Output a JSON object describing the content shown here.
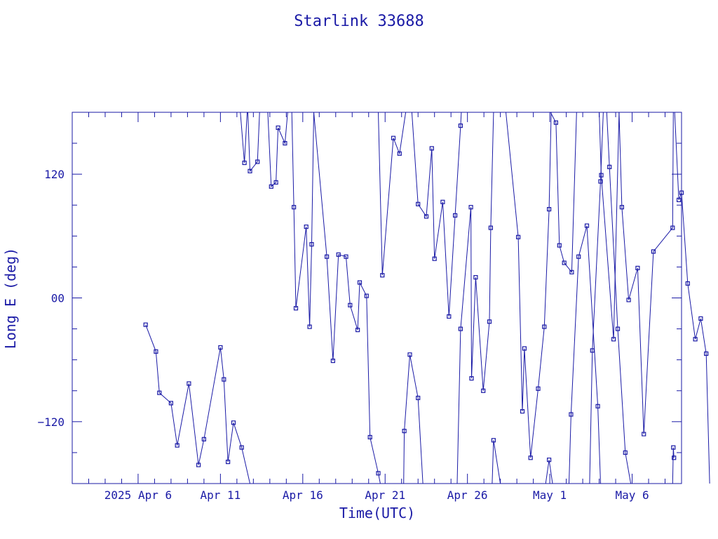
{
  "chart_data": {
    "type": "line",
    "title": "Starlink 33688",
    "xlabel": "Time(UTC)",
    "ylabel": "Long E (deg)",
    "x_is_date": true,
    "xlim": [
      "2025-04-02",
      "2025-05-09"
    ],
    "ylim": [
      -180,
      180
    ],
    "x_tick_labels": [
      "2025 Apr  6",
      "Apr 11",
      "Apr 16",
      "Apr 21",
      "Apr 26",
      "May  1",
      "May  6"
    ],
    "x_tick_dates": [
      "2025-04-06",
      "2025-04-11",
      "2025-04-16",
      "2025-04-21",
      "2025-04-26",
      "2025-05-01",
      "2025-05-06"
    ],
    "y_ticks": [
      -120,
      0,
      120
    ],
    "y_tick_labels": [
      "−120",
      "00",
      "120"
    ],
    "color": "#1a1aa6",
    "marker": "square",
    "series": [
      {
        "points": [
          [
            "2025-04-06 11:00",
            -26
          ],
          [
            "2025-04-07 02:00",
            -52
          ],
          [
            "2025-04-07 07:00",
            -92
          ],
          [
            "2025-04-08 00:00",
            -102
          ],
          [
            "2025-04-08 09:00",
            -143
          ],
          [
            "2025-04-09 02:00",
            -83
          ],
          [
            "2025-04-09 16:00",
            -162
          ],
          [
            "2025-04-10 00:00",
            -137
          ],
          [
            "2025-04-11 00:00",
            -48
          ],
          [
            "2025-04-11 05:00",
            -79
          ],
          [
            "2025-04-11 11:00",
            -159
          ],
          [
            "2025-04-11 19:00",
            -121
          ],
          [
            "2025-04-12 07:00",
            -145
          ],
          [
            "2025-04-12 19:00",
            -180
          ]
        ]
      },
      {
        "points": [
          [
            "2025-04-12 05:00",
            180
          ],
          [
            "2025-04-12 11:00",
            131
          ],
          [
            "2025-04-12 15:00",
            180
          ]
        ]
      },
      {
        "points": [
          [
            "2025-04-12 16:00",
            180
          ],
          [
            "2025-04-12 19:00",
            123
          ],
          [
            "2025-04-13 06:00",
            132
          ],
          [
            "2025-04-13 09:00",
            180
          ]
        ]
      },
      {
        "points": [
          [
            "2025-04-13 21:00",
            180
          ],
          [
            "2025-04-14 02:00",
            108
          ],
          [
            "2025-04-14 09:00",
            112
          ],
          [
            "2025-04-14 12:00",
            165
          ],
          [
            "2025-04-14 22:00",
            150
          ],
          [
            "2025-04-15 02:00",
            180
          ]
        ]
      },
      {
        "points": [
          [
            "2025-04-15 08:00",
            180
          ],
          [
            "2025-04-15 11:00",
            88
          ],
          [
            "2025-04-15 14:00",
            -10
          ],
          [
            "2025-04-16 05:00",
            69
          ],
          [
            "2025-04-16 10:00",
            -28
          ],
          [
            "2025-04-16 13:00",
            52
          ],
          [
            "2025-04-16 16:00",
            180
          ]
        ]
      },
      {
        "points": [
          [
            "2025-04-16 16:00",
            180
          ],
          [
            "2025-04-17 11:00",
            40
          ],
          [
            "2025-04-17 20:00",
            -61
          ],
          [
            "2025-04-18 04:00",
            42
          ],
          [
            "2025-04-18 15:00",
            40
          ],
          [
            "2025-04-18 21:00",
            -7
          ],
          [
            "2025-04-19 08:00",
            -31
          ],
          [
            "2025-04-19 11:00",
            15
          ],
          [
            "2025-04-19 21:00",
            2
          ],
          [
            "2025-04-20 02:00",
            -135
          ],
          [
            "2025-04-20 14:00",
            -170
          ],
          [
            "2025-04-20 17:00",
            -180
          ]
        ]
      },
      {
        "points": [
          [
            "2025-04-20 14:00",
            180
          ],
          [
            "2025-04-20 20:00",
            22
          ],
          [
            "2025-04-21 12:00",
            155
          ],
          [
            "2025-04-21 21:00",
            140
          ],
          [
            "2025-04-22 06:00",
            180
          ]
        ]
      },
      {
        "points": [
          [
            "2025-04-22 03:00",
            -180
          ],
          [
            "2025-04-22 04:00",
            -129
          ],
          [
            "2025-04-22 12:00",
            -55
          ],
          [
            "2025-04-23 00:00",
            -97
          ],
          [
            "2025-04-23 07:00",
            -180
          ]
        ]
      },
      {
        "points": [
          [
            "2025-04-22 15:00",
            180
          ],
          [
            "2025-04-23 00:00",
            91
          ],
          [
            "2025-04-23 12:00",
            79
          ],
          [
            "2025-04-23 20:00",
            145
          ],
          [
            "2025-04-24 00:00",
            38
          ],
          [
            "2025-04-24 12:00",
            93
          ],
          [
            "2025-04-24 21:00",
            -18
          ],
          [
            "2025-04-25 06:00",
            80
          ],
          [
            "2025-04-25 14:00",
            167
          ],
          [
            "2025-04-25 15:00",
            180
          ]
        ]
      },
      {
        "points": [
          [
            "2025-04-25 09:00",
            -180
          ],
          [
            "2025-04-25 14:00",
            -30
          ],
          [
            "2025-04-26 05:00",
            88
          ],
          [
            "2025-04-26 06:00",
            -78
          ],
          [
            "2025-04-26 12:00",
            20
          ],
          [
            "2025-04-26 23:00",
            -90
          ],
          [
            "2025-04-27 08:00",
            -23
          ],
          [
            "2025-04-27 10:00",
            68
          ],
          [
            "2025-04-27 14:00",
            180
          ]
        ]
      },
      {
        "points": [
          [
            "2025-04-27 12:00",
            -180
          ],
          [
            "2025-04-27 14:00",
            -138
          ],
          [
            "2025-04-28 00:00",
            -180
          ]
        ]
      },
      {
        "points": [
          [
            "2025-04-28 08:00",
            180
          ],
          [
            "2025-04-29 02:00",
            59
          ],
          [
            "2025-04-29 08:00",
            -110
          ],
          [
            "2025-04-29 11:00",
            -49
          ],
          [
            "2025-04-29 20:00",
            -155
          ],
          [
            "2025-04-30 07:00",
            -88
          ],
          [
            "2025-04-30 16:00",
            -28
          ],
          [
            "2025-04-30 23:00",
            86
          ],
          [
            "2025-05-01 02:00",
            180
          ]
        ]
      },
      {
        "points": [
          [
            "2025-04-30 18:00",
            -180
          ],
          [
            "2025-04-30 23:00",
            -157
          ],
          [
            "2025-05-01 04:00",
            -180
          ]
        ]
      },
      {
        "points": [
          [
            "2025-05-01 01:00",
            180
          ],
          [
            "2025-05-01 09:00",
            170
          ],
          [
            "2025-05-01 14:00",
            51
          ],
          [
            "2025-05-01 21:00",
            34
          ],
          [
            "2025-05-02 08:00",
            25
          ],
          [
            "2025-05-02 15:00",
            180
          ]
        ]
      },
      {
        "points": [
          [
            "2025-05-02 04:00",
            -180
          ],
          [
            "2025-05-02 07:00",
            -113
          ],
          [
            "2025-05-02 18:00",
            40
          ],
          [
            "2025-05-03 06:00",
            70
          ],
          [
            "2025-05-03 22:00",
            -105
          ],
          [
            "2025-05-04 02:00",
            -180
          ]
        ]
      },
      {
        "points": [
          [
            "2025-05-03 10:00",
            -180
          ],
          [
            "2025-05-03 14:00",
            -51
          ],
          [
            "2025-05-04 02:00",
            113
          ],
          [
            "2025-05-04 06:00",
            180
          ]
        ]
      },
      {
        "points": [
          [
            "2025-05-04 00:00",
            180
          ],
          [
            "2025-05-04 03:00",
            119
          ],
          [
            "2025-05-04 21:00",
            -40
          ],
          [
            "2025-05-05 05:00",
            180
          ]
        ]
      },
      {
        "points": [
          [
            "2025-05-04 11:00",
            180
          ],
          [
            "2025-05-04 15:00",
            127
          ],
          [
            "2025-05-05 03:00",
            -30
          ],
          [
            "2025-05-05 14:00",
            -150
          ],
          [
            "2025-05-05 22:00",
            -180
          ]
        ]
      },
      {
        "points": [
          [
            "2025-05-05 05:00",
            180
          ],
          [
            "2025-05-05 09:00",
            88
          ],
          [
            "2025-05-05 19:00",
            -2
          ],
          [
            "2025-05-06 08:00",
            29
          ],
          [
            "2025-05-06 17:00",
            -132
          ],
          [
            "2025-05-07 07:00",
            45
          ],
          [
            "2025-05-08 11:00",
            68
          ],
          [
            "2025-05-08 12:00",
            180
          ]
        ]
      },
      {
        "points": [
          [
            "2025-05-08 11:00",
            -180
          ],
          [
            "2025-05-08 12:00",
            -145
          ],
          [
            "2025-05-08 13:00",
            -155
          ]
        ]
      },
      {
        "points": [
          [
            "2025-05-08 14:00",
            180
          ],
          [
            "2025-05-08 20:00",
            95
          ],
          [
            "2025-05-09 00:00",
            102
          ],
          [
            "2025-05-09 09:00",
            14
          ],
          [
            "2025-05-09 20:00",
            -40
          ],
          [
            "2025-05-10 04:00",
            -20
          ],
          [
            "2025-05-10 12:00",
            -54
          ],
          [
            "2025-05-10 17:00",
            -180
          ]
        ]
      }
    ]
  }
}
